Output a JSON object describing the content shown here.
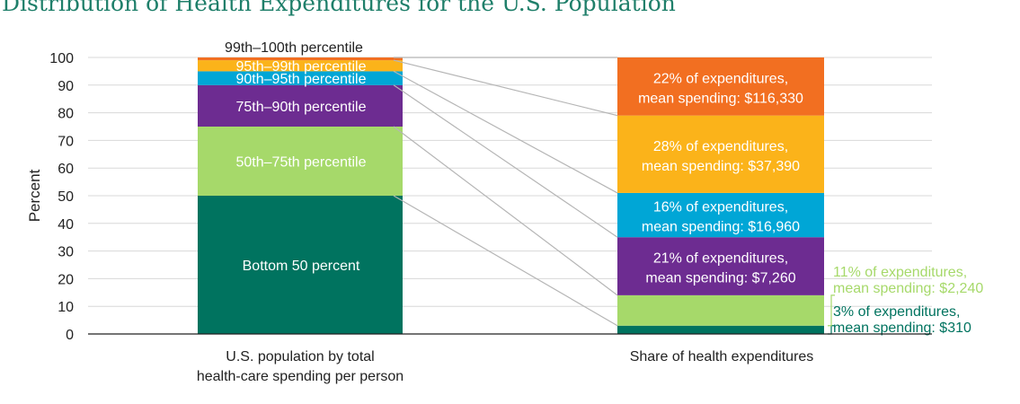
{
  "chart_data": {
    "type": "bar",
    "title": "Distribution of Health Expenditures for the U.S. Population",
    "ylabel": "Percent",
    "ylim": [
      0,
      100
    ],
    "yticks": [
      0,
      10,
      20,
      30,
      40,
      50,
      60,
      70,
      80,
      90,
      100
    ],
    "grid": true,
    "categories": [
      "U.S. population by total health-care spending per person",
      "Share of health expenditures"
    ],
    "category_lines": [
      [
        "U.S. population by total",
        "health-care spending per person"
      ],
      [
        "Share of health expenditures"
      ]
    ],
    "population_segments": [
      {
        "label": "Bottom 50 percent",
        "start": 0,
        "end": 50,
        "color": "#00735f"
      },
      {
        "label": "50th–75th percentile",
        "start": 50,
        "end": 75,
        "color": "#a6d96a"
      },
      {
        "label": "75th–90th percentile",
        "start": 75,
        "end": 90,
        "color": "#6d2c91"
      },
      {
        "label": "90th–95th percentile",
        "start": 90,
        "end": 95,
        "color": "#00a6d6"
      },
      {
        "label": "95th–99th percentile",
        "start": 95,
        "end": 99,
        "color": "#fbb31a"
      },
      {
        "label": "99th–100th percentile",
        "start": 99,
        "end": 100,
        "color": "#f26f21"
      }
    ],
    "expenditure_segments": [
      {
        "share": 3,
        "mean_spending": 310,
        "start": 0,
        "end": 3,
        "label_lines": [
          "3% of expenditures,",
          "mean spending: $310"
        ],
        "color": "#00735f",
        "label_color": "#00735f"
      },
      {
        "share": 11,
        "mean_spending": 2240,
        "start": 3,
        "end": 14,
        "label_lines": [
          "11% of expenditures,",
          "mean spending: $2,240"
        ],
        "color": "#a6d96a",
        "label_color": "#a6d96a"
      },
      {
        "share": 21,
        "mean_spending": 7260,
        "start": 14,
        "end": 35,
        "label_lines": [
          "21% of expenditures,",
          "mean spending: $7,260"
        ],
        "color": "#6d2c91",
        "label_color": "#ffffff"
      },
      {
        "share": 16,
        "mean_spending": 16960,
        "start": 35,
        "end": 51,
        "label_lines": [
          "16% of expenditures,",
          "mean spending: $16,960"
        ],
        "color": "#00a6d6",
        "label_color": "#ffffff"
      },
      {
        "share": 28,
        "mean_spending": 37390,
        "start": 51,
        "end": 79,
        "label_lines": [
          "28% of expenditures,",
          "mean spending: $37,390"
        ],
        "color": "#fbb31a",
        "label_color": "#ffffff"
      },
      {
        "share": 22,
        "mean_spending": 116330,
        "start": 79,
        "end": 100,
        "label_lines": [
          "22% of expenditures,",
          "mean spending: $116,330"
        ],
        "color": "#f26f21",
        "label_color": "#ffffff"
      }
    ]
  }
}
